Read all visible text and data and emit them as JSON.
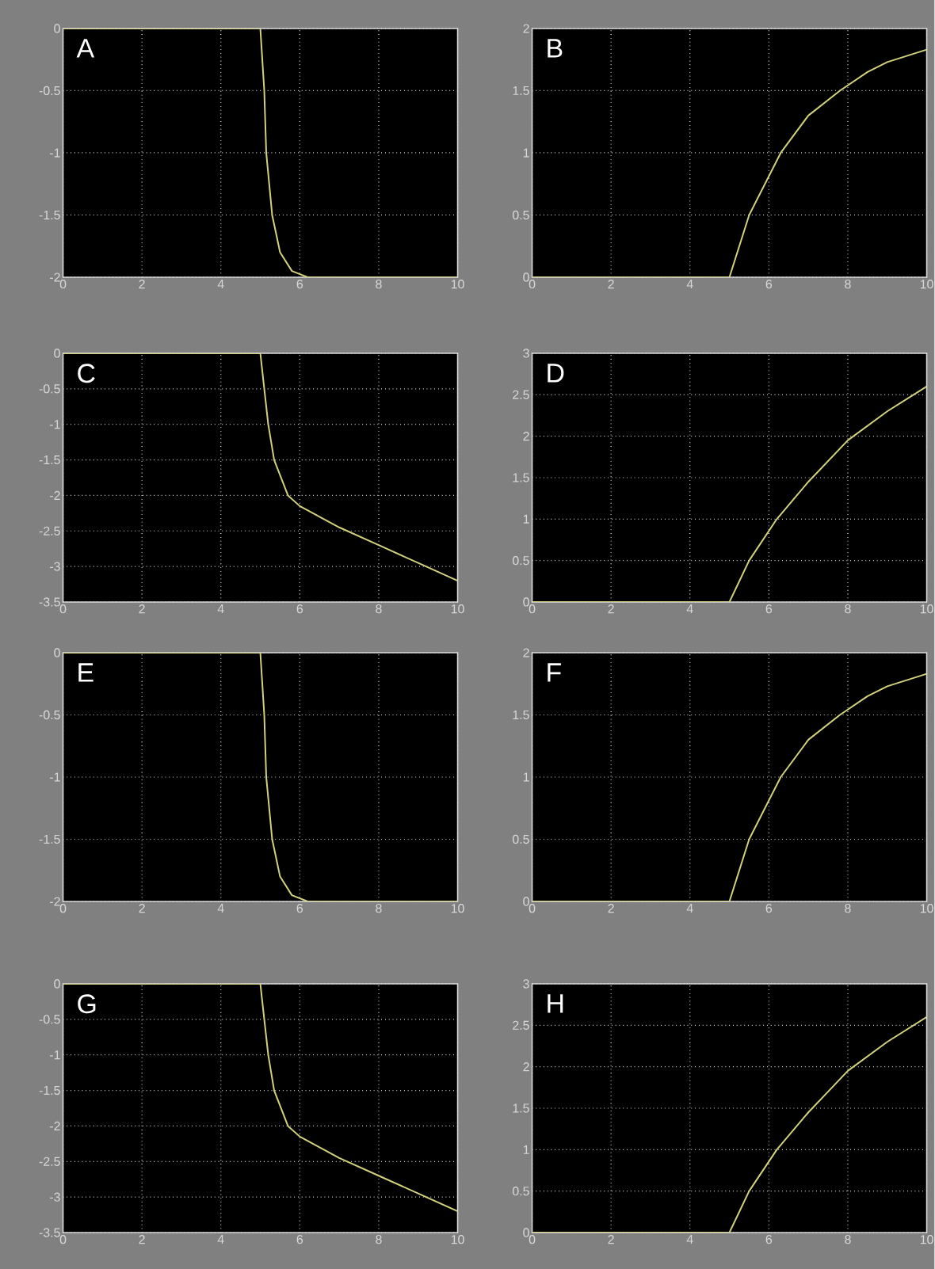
{
  "chart_data": [
    {
      "type": "line",
      "annotations": [
        "A"
      ],
      "x": [
        0,
        5,
        5.1,
        5.15,
        5.3,
        5.5,
        5.8,
        6.2,
        10
      ],
      "values": [
        0,
        0,
        -0.5,
        -1,
        -1.5,
        -1.8,
        -1.95,
        -2,
        -2
      ],
      "color": "#d2d27c",
      "xlim": [
        0,
        10
      ],
      "xticks": [
        0,
        2,
        4,
        6,
        8,
        10
      ],
      "ylim": [
        -2,
        0
      ],
      "yticks": [
        -2,
        -1.5,
        -1,
        -0.5,
        0
      ],
      "grid": true
    },
    {
      "type": "line",
      "annotations": [
        "B"
      ],
      "x": [
        0,
        5,
        5.5,
        6.3,
        7,
        7.8,
        8.5,
        9,
        10
      ],
      "values": [
        0,
        0,
        0.5,
        1,
        1.3,
        1.5,
        1.65,
        1.73,
        1.83
      ],
      "color": "#d2d27c",
      "xlim": [
        0,
        10
      ],
      "xticks": [
        0,
        2,
        4,
        6,
        8,
        10
      ],
      "ylim": [
        0,
        2
      ],
      "yticks": [
        0,
        0.5,
        1,
        1.5,
        2
      ],
      "grid": true
    },
    {
      "type": "line",
      "annotations": [
        "C"
      ],
      "x": [
        0,
        5,
        5.1,
        5.2,
        5.35,
        5.7,
        6,
        7,
        8,
        9,
        10
      ],
      "values": [
        0,
        0,
        -0.5,
        -1,
        -1.5,
        -2,
        -2.15,
        -2.45,
        -2.7,
        -2.95,
        -3.2
      ],
      "color": "#d2d27c",
      "xlim": [
        0,
        10
      ],
      "xticks": [
        0,
        2,
        4,
        6,
        8,
        10
      ],
      "ylim": [
        -3.5,
        0
      ],
      "yticks": [
        -3.5,
        -3,
        -2.5,
        -2,
        -1.5,
        -1,
        -0.5,
        0
      ],
      "grid": true
    },
    {
      "type": "line",
      "annotations": [
        "D"
      ],
      "x": [
        0,
        5,
        5.5,
        6.2,
        7,
        7.5,
        8,
        9,
        10
      ],
      "values": [
        0,
        0,
        0.5,
        1,
        1.45,
        1.7,
        1.95,
        2.3,
        2.6
      ],
      "color": "#d2d27c",
      "xlim": [
        0,
        10
      ],
      "xticks": [
        0,
        2,
        4,
        6,
        8,
        10
      ],
      "ylim": [
        0,
        3
      ],
      "yticks": [
        0,
        0.5,
        1,
        1.5,
        2,
        2.5,
        3
      ],
      "grid": true
    },
    {
      "type": "line",
      "annotations": [
        "E"
      ],
      "x": [
        0,
        5,
        5.1,
        5.15,
        5.3,
        5.5,
        5.8,
        6.2,
        10
      ],
      "values": [
        0,
        0,
        -0.5,
        -1,
        -1.5,
        -1.8,
        -1.95,
        -2,
        -2
      ],
      "color": "#d2d27c",
      "xlim": [
        0,
        10
      ],
      "xticks": [
        0,
        2,
        4,
        6,
        8,
        10
      ],
      "ylim": [
        -2,
        0
      ],
      "yticks": [
        -2,
        -1.5,
        -1,
        -0.5,
        0
      ],
      "grid": true
    },
    {
      "type": "line",
      "annotations": [
        "F"
      ],
      "x": [
        0,
        5,
        5.5,
        6.3,
        7,
        7.8,
        8.5,
        9,
        10
      ],
      "values": [
        0,
        0,
        0.5,
        1,
        1.3,
        1.5,
        1.65,
        1.73,
        1.83
      ],
      "color": "#d2d27c",
      "xlim": [
        0,
        10
      ],
      "xticks": [
        0,
        2,
        4,
        6,
        8,
        10
      ],
      "ylim": [
        0,
        2
      ],
      "yticks": [
        0,
        0.5,
        1,
        1.5,
        2
      ],
      "grid": true
    },
    {
      "type": "line",
      "annotations": [
        "G"
      ],
      "x": [
        0,
        5,
        5.1,
        5.2,
        5.35,
        5.7,
        6,
        7,
        8,
        9,
        10
      ],
      "values": [
        0,
        0,
        -0.5,
        -1,
        -1.5,
        -2,
        -2.15,
        -2.45,
        -2.7,
        -2.95,
        -3.2
      ],
      "color": "#d2d27c",
      "xlim": [
        0,
        10
      ],
      "xticks": [
        0,
        2,
        4,
        6,
        8,
        10
      ],
      "ylim": [
        -3.5,
        0
      ],
      "yticks": [
        -3.5,
        -3,
        -2.5,
        -2,
        -1.5,
        -1,
        -0.5,
        0
      ],
      "grid": true
    },
    {
      "type": "line",
      "annotations": [
        "H"
      ],
      "x": [
        0,
        5,
        5.5,
        6.2,
        7,
        7.5,
        8,
        9,
        10
      ],
      "values": [
        0,
        0,
        0.5,
        1,
        1.45,
        1.7,
        1.95,
        2.3,
        2.6
      ],
      "color": "#d2d27c",
      "xlim": [
        0,
        10
      ],
      "xticks": [
        0,
        2,
        4,
        6,
        8,
        10
      ],
      "ylim": [
        0,
        3
      ],
      "yticks": [
        0,
        0.5,
        1,
        1.5,
        2,
        2.5,
        3
      ],
      "grid": true
    }
  ]
}
